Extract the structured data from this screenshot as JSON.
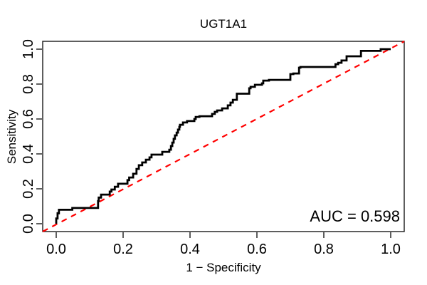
{
  "title": "UGT1A1",
  "x_axis": {
    "label": "1 − Specificity",
    "ticks": [
      "0.0",
      "0.2",
      "0.4",
      "0.6",
      "0.8",
      "1.0"
    ]
  },
  "y_axis": {
    "label": "Sensitivity",
    "ticks": [
      "0.0",
      "0.2",
      "0.4",
      "0.6",
      "0.8",
      "1.0"
    ]
  },
  "annotation": {
    "auc_label": "AUC = 0.598"
  },
  "colors": {
    "roc_curve": "#000000",
    "reference_line": "#ff0000",
    "background": "#ffffff",
    "frame": "#1a1a1a"
  },
  "chart_data": {
    "type": "line",
    "title": "UGT1A1",
    "xlabel": "1 − Specificity",
    "ylabel": "Sensitivity",
    "xlim": [
      0,
      1
    ],
    "ylim": [
      0,
      1
    ],
    "grid": false,
    "legend_position": "none",
    "auc": 0.598,
    "series": [
      {
        "name": "ROC curve",
        "style": "step",
        "color": "#000000",
        "points": [
          [
            0.0,
            0.0
          ],
          [
            0.004,
            0.03
          ],
          [
            0.008,
            0.06
          ],
          [
            0.01,
            0.08
          ],
          [
            0.048,
            0.08
          ],
          [
            0.05,
            0.09
          ],
          [
            0.125,
            0.09
          ],
          [
            0.127,
            0.13
          ],
          [
            0.134,
            0.15
          ],
          [
            0.136,
            0.167
          ],
          [
            0.16,
            0.167
          ],
          [
            0.165,
            0.184
          ],
          [
            0.175,
            0.196
          ],
          [
            0.185,
            0.212
          ],
          [
            0.198,
            0.229
          ],
          [
            0.213,
            0.229
          ],
          [
            0.218,
            0.25
          ],
          [
            0.23,
            0.265
          ],
          [
            0.24,
            0.286
          ],
          [
            0.247,
            0.314
          ],
          [
            0.257,
            0.335
          ],
          [
            0.268,
            0.351
          ],
          [
            0.279,
            0.367
          ],
          [
            0.285,
            0.38
          ],
          [
            0.294,
            0.396
          ],
          [
            0.317,
            0.396
          ],
          [
            0.319,
            0.412
          ],
          [
            0.338,
            0.412
          ],
          [
            0.343,
            0.424
          ],
          [
            0.347,
            0.445
          ],
          [
            0.351,
            0.465
          ],
          [
            0.355,
            0.486
          ],
          [
            0.36,
            0.506
          ],
          [
            0.364,
            0.522
          ],
          [
            0.368,
            0.539
          ],
          [
            0.37,
            0.555
          ],
          [
            0.379,
            0.567
          ],
          [
            0.391,
            0.58
          ],
          [
            0.413,
            0.588
          ],
          [
            0.417,
            0.6
          ],
          [
            0.428,
            0.612
          ],
          [
            0.432,
            0.616
          ],
          [
            0.466,
            0.616
          ],
          [
            0.474,
            0.629
          ],
          [
            0.481,
            0.641
          ],
          [
            0.496,
            0.649
          ],
          [
            0.513,
            0.661
          ],
          [
            0.521,
            0.678
          ],
          [
            0.528,
            0.694
          ],
          [
            0.54,
            0.71
          ],
          [
            0.549,
            0.745
          ],
          [
            0.577,
            0.745
          ],
          [
            0.581,
            0.776
          ],
          [
            0.594,
            0.784
          ],
          [
            0.598,
            0.796
          ],
          [
            0.615,
            0.796
          ],
          [
            0.619,
            0.804
          ],
          [
            0.636,
            0.82
          ],
          [
            0.64,
            0.824
          ],
          [
            0.7,
            0.824
          ],
          [
            0.709,
            0.857
          ],
          [
            0.726,
            0.861
          ],
          [
            0.73,
            0.894
          ],
          [
            0.74,
            0.898
          ],
          [
            0.835,
            0.898
          ],
          [
            0.843,
            0.914
          ],
          [
            0.853,
            0.922
          ],
          [
            0.868,
            0.935
          ],
          [
            0.874,
            0.959
          ],
          [
            0.911,
            0.959
          ],
          [
            0.913,
            0.99
          ],
          [
            0.97,
            0.99
          ],
          [
            0.975,
            1.0
          ],
          [
            1.0,
            1.0
          ]
        ]
      },
      {
        "name": "Chance line (y = x)",
        "style": "dashed",
        "color": "#ff0000",
        "points": [
          [
            0,
            0
          ],
          [
            1,
            1
          ]
        ]
      }
    ]
  }
}
